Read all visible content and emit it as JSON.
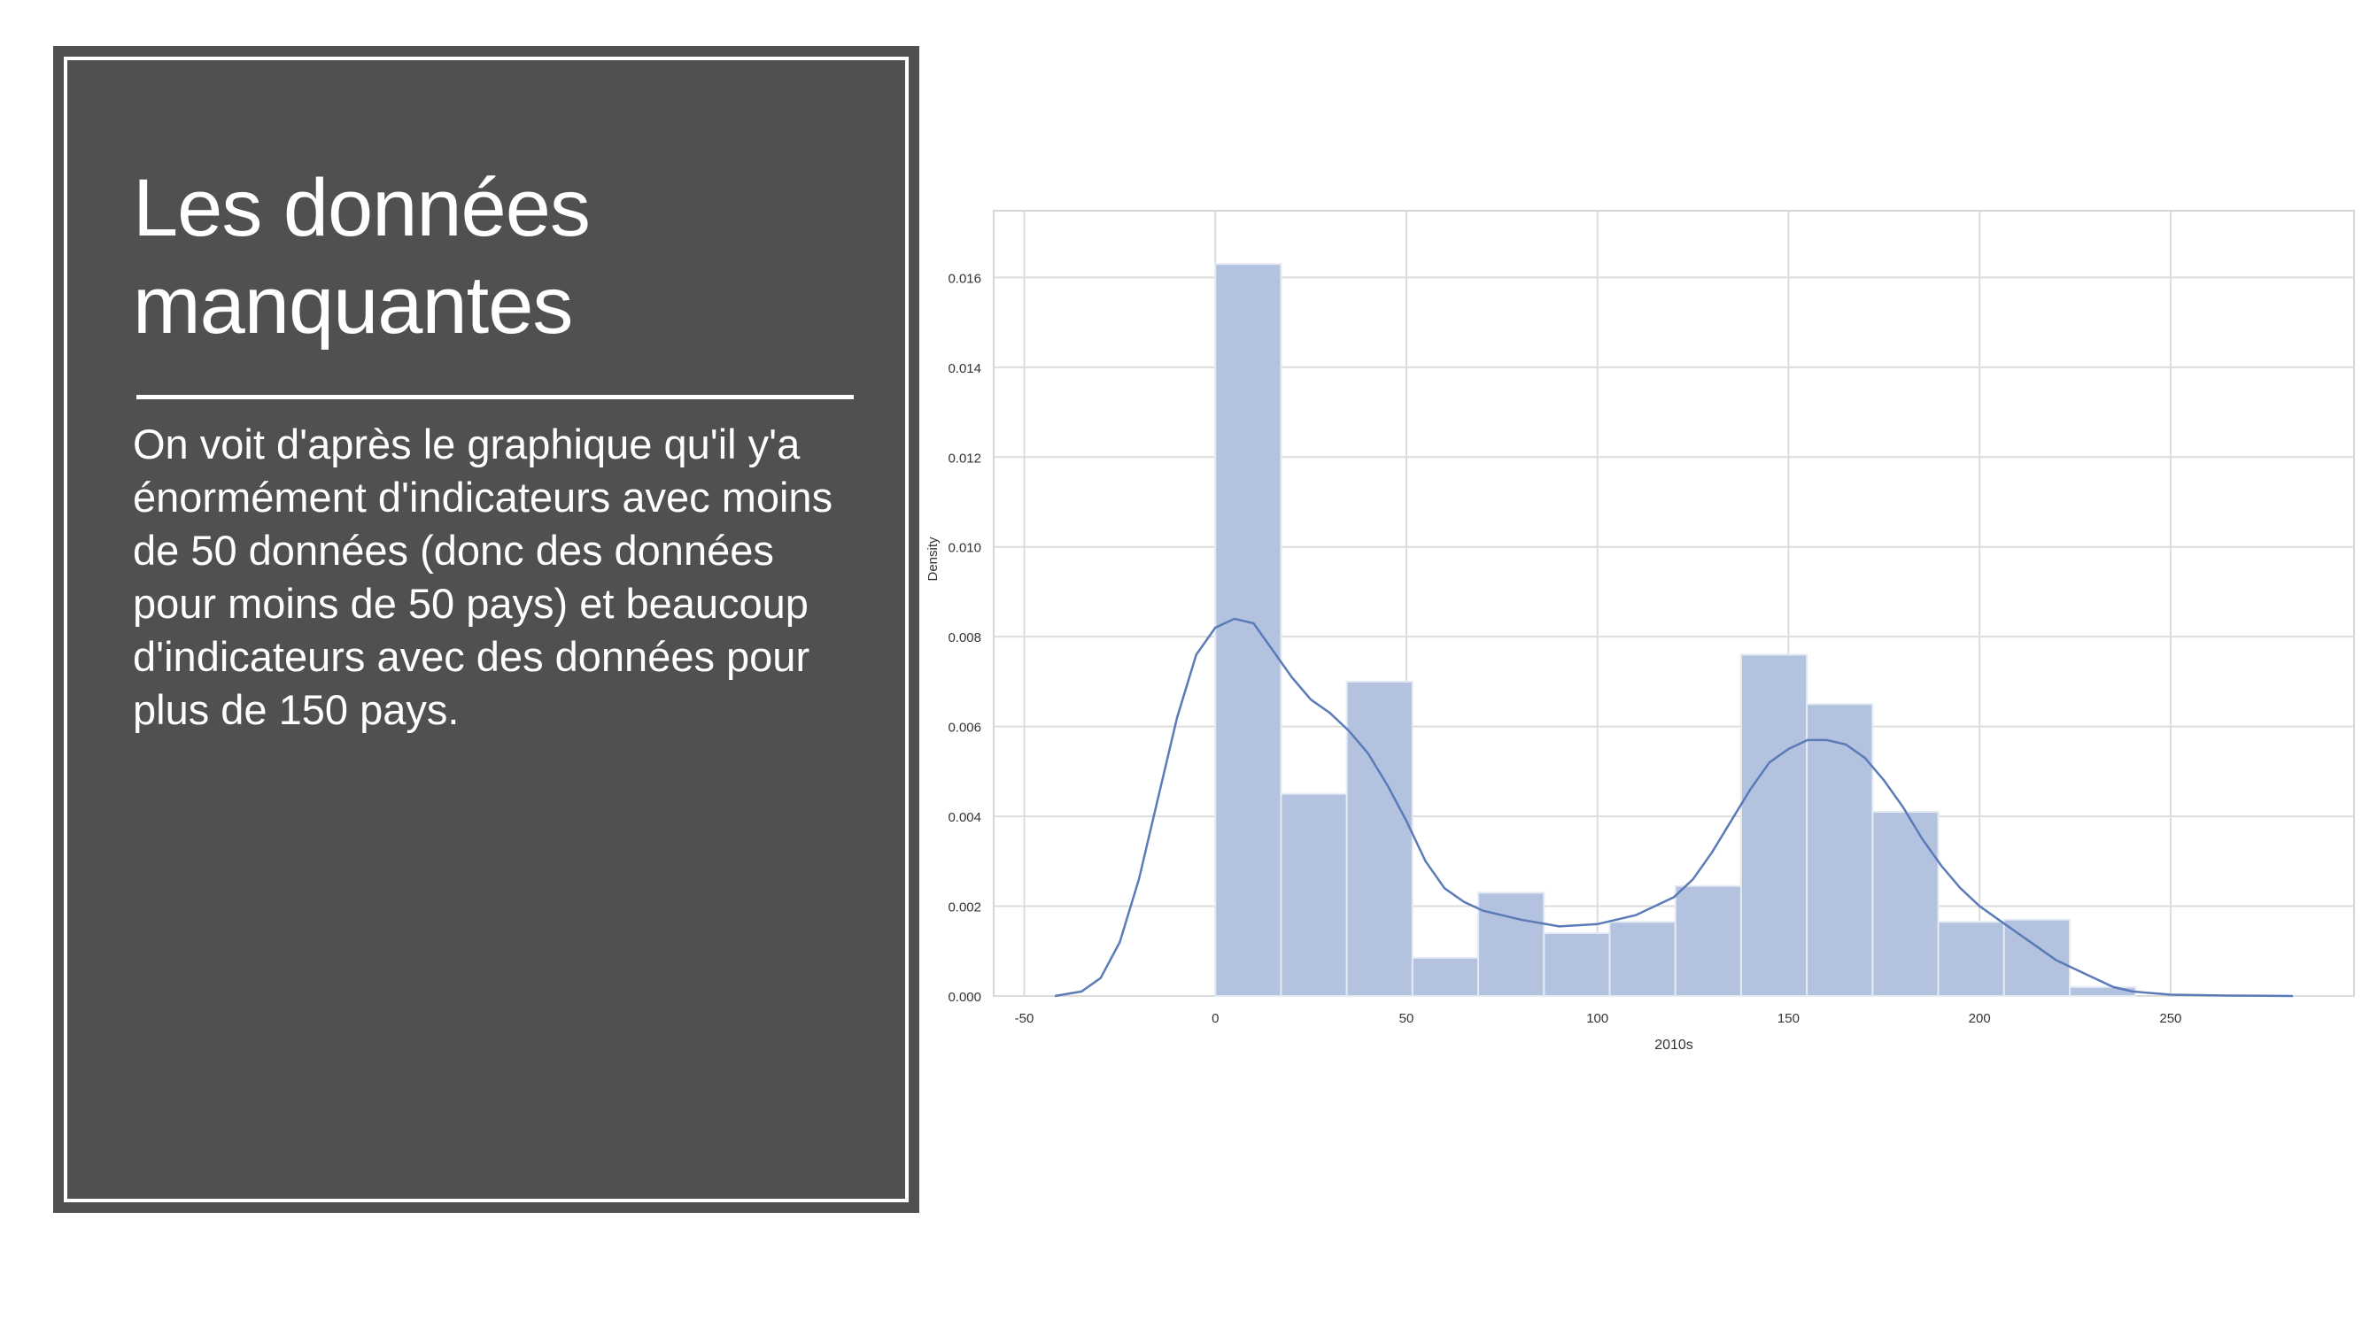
{
  "slide": {
    "title": "Les données manquantes",
    "body": "On voit d'après le graphique qu'il y'a énormément d'indicateurs avec moins de 50 données (donc des données pour moins de 50 pays) et beaucoup d'indicateurs avec des données pour plus de 150 pays."
  },
  "chart_data": {
    "type": "histogram",
    "xlabel": "2010s",
    "ylabel": "Density",
    "xlim": [
      -58,
      298
    ],
    "ylim": [
      0,
      0.0165
    ],
    "xticks": [
      -50,
      0,
      50,
      100,
      150,
      200,
      250
    ],
    "xtick_labels": [
      "-50",
      "0",
      "50",
      "100",
      "150",
      "200",
      "250"
    ],
    "yticks": [
      0.0,
      0.002,
      0.004,
      0.006,
      0.008,
      0.01,
      0.012,
      0.014,
      0.016
    ],
    "ytick_labels": [
      "0.000",
      "0.002",
      "0.004",
      "0.006",
      "0.008",
      "0.010",
      "0.012",
      "0.014",
      "0.016"
    ],
    "grid": true,
    "bins": [
      {
        "x0": 0,
        "x1": 17.2,
        "density": 0.0163
      },
      {
        "x0": 17.2,
        "x1": 34.4,
        "density": 0.0045
      },
      {
        "x0": 34.4,
        "x1": 51.6,
        "density": 0.007
      },
      {
        "x0": 51.6,
        "x1": 68.8,
        "density": 0.00085
      },
      {
        "x0": 68.8,
        "x1": 86.0,
        "density": 0.0023
      },
      {
        "x0": 86.0,
        "x1": 103.2,
        "density": 0.0014
      },
      {
        "x0": 103.2,
        "x1": 120.4,
        "density": 0.00165
      },
      {
        "x0": 120.4,
        "x1": 137.6,
        "density": 0.00245
      },
      {
        "x0": 137.6,
        "x1": 154.8,
        "density": 0.0076
      },
      {
        "x0": 154.8,
        "x1": 172.0,
        "density": 0.0065
      },
      {
        "x0": 172.0,
        "x1": 189.2,
        "density": 0.0041
      },
      {
        "x0": 189.2,
        "x1": 206.4,
        "density": 0.00165
      },
      {
        "x0": 206.4,
        "x1": 223.6,
        "density": 0.0017
      },
      {
        "x0": 223.6,
        "x1": 240.8,
        "density": 0.0002
      }
    ],
    "kde": [
      [
        -42,
        0.0
      ],
      [
        -35,
        0.0001
      ],
      [
        -30,
        0.0004
      ],
      [
        -25,
        0.0012
      ],
      [
        -20,
        0.0026
      ],
      [
        -15,
        0.0044
      ],
      [
        -10,
        0.0062
      ],
      [
        -5,
        0.0076
      ],
      [
        0,
        0.0082
      ],
      [
        5,
        0.0084
      ],
      [
        10,
        0.0083
      ],
      [
        15,
        0.0077
      ],
      [
        20,
        0.0071
      ],
      [
        25,
        0.0066
      ],
      [
        30,
        0.0063
      ],
      [
        35,
        0.0059
      ],
      [
        40,
        0.0054
      ],
      [
        45,
        0.0047
      ],
      [
        50,
        0.0039
      ],
      [
        55,
        0.003
      ],
      [
        60,
        0.0024
      ],
      [
        65,
        0.0021
      ],
      [
        70,
        0.0019
      ],
      [
        75,
        0.0018
      ],
      [
        80,
        0.0017
      ],
      [
        90,
        0.00155
      ],
      [
        100,
        0.0016
      ],
      [
        110,
        0.0018
      ],
      [
        120,
        0.0022
      ],
      [
        125,
        0.0026
      ],
      [
        130,
        0.0032
      ],
      [
        135,
        0.0039
      ],
      [
        140,
        0.0046
      ],
      [
        145,
        0.0052
      ],
      [
        150,
        0.0055
      ],
      [
        155,
        0.0057
      ],
      [
        160,
        0.0057
      ],
      [
        165,
        0.0056
      ],
      [
        170,
        0.0053
      ],
      [
        175,
        0.0048
      ],
      [
        180,
        0.0042
      ],
      [
        185,
        0.0035
      ],
      [
        190,
        0.0029
      ],
      [
        195,
        0.0024
      ],
      [
        200,
        0.002
      ],
      [
        205,
        0.0017
      ],
      [
        210,
        0.0014
      ],
      [
        215,
        0.0011
      ],
      [
        220,
        0.0008
      ],
      [
        225,
        0.0006
      ],
      [
        230,
        0.0004
      ],
      [
        235,
        0.0002
      ],
      [
        240,
        0.0001
      ],
      [
        250,
        3e-05
      ],
      [
        265,
        1e-05
      ],
      [
        282,
        0.0
      ]
    ],
    "bar_color": "#b3c3df",
    "line_color": "#5b7bb8"
  }
}
